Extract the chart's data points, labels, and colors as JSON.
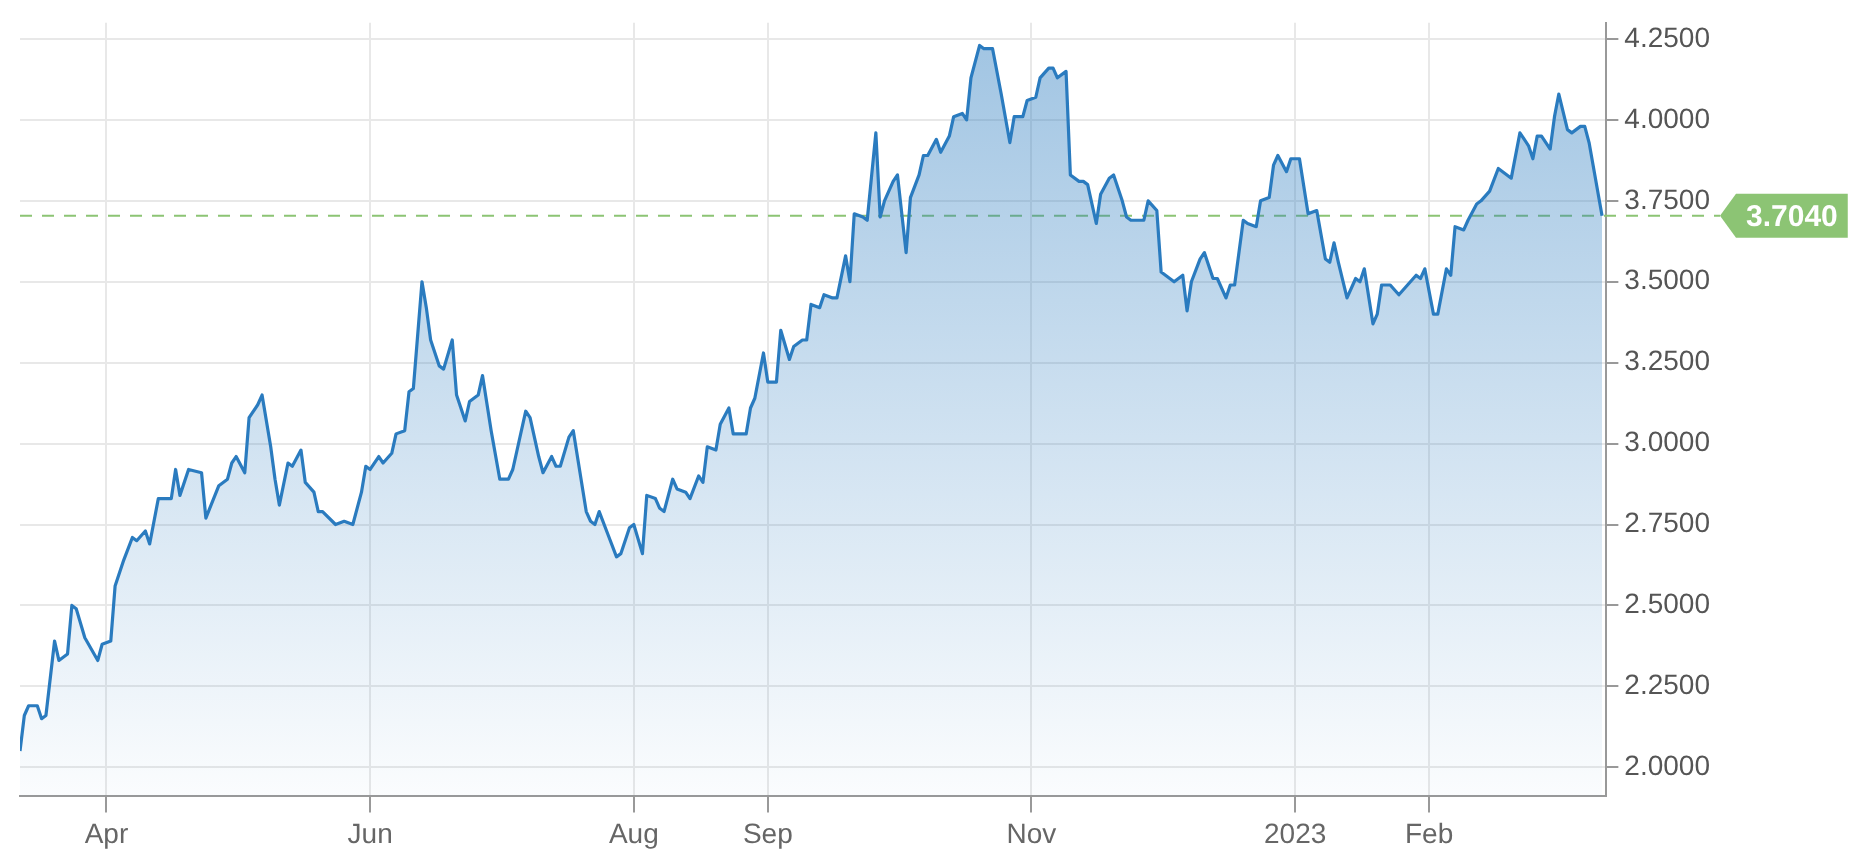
{
  "chart_data": {
    "type": "area",
    "x": [
      "2022-03-12",
      "2022-03-13",
      "2022-03-14",
      "2022-03-16",
      "2022-03-17",
      "2022-03-18",
      "2022-03-20",
      "2022-03-21",
      "2022-03-23",
      "2022-03-24",
      "2022-03-25",
      "2022-03-27",
      "2022-03-30",
      "2022-03-31",
      "2022-04-02",
      "2022-04-03",
      "2022-04-05",
      "2022-04-07",
      "2022-04-08",
      "2022-04-10",
      "2022-04-11",
      "2022-04-13",
      "2022-04-16",
      "2022-04-17",
      "2022-04-18",
      "2022-04-20",
      "2022-04-23",
      "2022-04-24",
      "2022-04-27",
      "2022-04-29",
      "2022-04-30",
      "2022-05-01",
      "2022-05-03",
      "2022-05-04",
      "2022-05-06",
      "2022-05-07",
      "2022-05-09",
      "2022-05-10",
      "2022-05-11",
      "2022-05-13",
      "2022-05-14",
      "2022-05-16",
      "2022-05-17",
      "2022-05-19",
      "2022-05-20",
      "2022-05-21",
      "2022-05-24",
      "2022-05-26",
      "2022-05-28",
      "2022-05-30",
      "2022-05-31",
      "2022-06-01",
      "2022-06-03",
      "2022-06-04",
      "2022-06-06",
      "2022-06-07",
      "2022-06-09",
      "2022-06-10",
      "2022-06-11",
      "2022-06-13",
      "2022-06-14",
      "2022-06-15",
      "2022-06-17",
      "2022-06-18",
      "2022-06-20",
      "2022-06-21",
      "2022-06-23",
      "2022-06-24",
      "2022-06-26",
      "2022-06-27",
      "2022-06-29",
      "2022-07-01",
      "2022-07-03",
      "2022-07-04",
      "2022-07-07",
      "2022-07-08",
      "2022-07-10",
      "2022-07-11",
      "2022-07-13",
      "2022-07-14",
      "2022-07-15",
      "2022-07-17",
      "2022-07-18",
      "2022-07-21",
      "2022-07-22",
      "2022-07-23",
      "2022-07-24",
      "2022-07-26",
      "2022-07-28",
      "2022-07-29",
      "2022-07-31",
      "2022-08-01",
      "2022-08-03",
      "2022-08-04",
      "2022-08-06",
      "2022-08-07",
      "2022-08-08",
      "2022-08-10",
      "2022-08-11",
      "2022-08-13",
      "2022-08-14",
      "2022-08-16",
      "2022-08-17",
      "2022-08-18",
      "2022-08-20",
      "2022-08-21",
      "2022-08-23",
      "2022-08-24",
      "2022-08-27",
      "2022-08-28",
      "2022-08-29",
      "2022-08-31",
      "2022-09-01",
      "2022-09-03",
      "2022-09-04",
      "2022-09-06",
      "2022-09-07",
      "2022-09-09",
      "2022-09-10",
      "2022-09-11",
      "2022-09-13",
      "2022-09-14",
      "2022-09-16",
      "2022-09-17",
      "2022-09-19",
      "2022-09-20",
      "2022-09-21",
      "2022-09-23",
      "2022-09-24",
      "2022-09-26",
      "2022-09-27",
      "2022-09-28",
      "2022-09-30",
      "2022-10-01",
      "2022-10-03",
      "2022-10-04",
      "2022-10-06",
      "2022-10-07",
      "2022-10-08",
      "2022-10-10",
      "2022-10-11",
      "2022-10-13",
      "2022-10-14",
      "2022-10-16",
      "2022-10-17",
      "2022-10-18",
      "2022-10-20",
      "2022-10-21",
      "2022-10-23",
      "2022-10-25",
      "2022-10-27",
      "2022-10-28",
      "2022-10-30",
      "2022-10-31",
      "2022-11-02",
      "2022-11-03",
      "2022-11-05",
      "2022-11-06",
      "2022-11-07",
      "2022-11-09",
      "2022-11-10",
      "2022-11-12",
      "2022-11-13",
      "2022-11-14",
      "2022-11-16",
      "2022-11-17",
      "2022-11-19",
      "2022-11-20",
      "2022-11-22",
      "2022-11-23",
      "2022-11-24",
      "2022-11-27",
      "2022-11-28",
      "2022-11-30",
      "2022-12-01",
      "2022-12-03",
      "2022-12-04",
      "2022-12-06",
      "2022-12-07",
      "2022-12-08",
      "2022-12-10",
      "2022-12-11",
      "2022-12-13",
      "2022-12-14",
      "2022-12-16",
      "2022-12-17",
      "2022-12-18",
      "2022-12-20",
      "2022-12-21",
      "2022-12-23",
      "2022-12-24",
      "2022-12-26",
      "2022-12-27",
      "2022-12-28",
      "2022-12-30",
      "2022-12-31",
      "2023-01-02",
      "2023-01-04",
      "2023-01-06",
      "2023-01-08",
      "2023-01-09",
      "2023-01-10",
      "2023-01-11",
      "2023-01-13",
      "2023-01-15",
      "2023-01-16",
      "2023-01-17",
      "2023-01-19",
      "2023-01-20",
      "2023-01-21",
      "2023-01-23",
      "2023-01-25",
      "2023-01-27",
      "2023-01-29",
      "2023-01-30",
      "2023-01-31",
      "2023-02-02",
      "2023-02-03",
      "2023-02-05",
      "2023-02-06",
      "2023-02-07",
      "2023-02-09",
      "2023-02-10",
      "2023-02-12",
      "2023-02-13",
      "2023-02-15",
      "2023-02-17",
      "2023-02-20",
      "2023-02-22",
      "2023-02-24",
      "2023-02-25",
      "2023-02-26",
      "2023-02-27",
      "2023-03-01",
      "2023-03-02",
      "2023-03-03",
      "2023-03-05",
      "2023-03-06",
      "2023-03-08",
      "2023-03-09",
      "2023-03-10",
      "2023-03-13"
    ],
    "series": [
      {
        "color": "#2a7bbf",
        "values": [
          2.05,
          2.16,
          2.19,
          2.19,
          2.15,
          2.16,
          2.39,
          2.33,
          2.35,
          2.5,
          2.49,
          2.4,
          2.33,
          2.38,
          2.39,
          2.56,
          2.64,
          2.71,
          2.7,
          2.73,
          2.69,
          2.83,
          2.83,
          2.92,
          2.84,
          2.92,
          2.91,
          2.77,
          2.87,
          2.89,
          2.94,
          2.96,
          2.91,
          3.08,
          3.12,
          3.15,
          2.99,
          2.89,
          2.81,
          2.94,
          2.93,
          2.98,
          2.88,
          2.85,
          2.79,
          2.79,
          2.75,
          2.76,
          2.75,
          2.85,
          2.93,
          2.92,
          2.96,
          2.94,
          2.97,
          3.03,
          3.04,
          3.16,
          3.17,
          3.5,
          3.42,
          3.32,
          3.24,
          3.23,
          3.32,
          3.15,
          3.07,
          3.13,
          3.15,
          3.21,
          3.04,
          2.89,
          2.89,
          2.92,
          3.1,
          3.08,
          2.96,
          2.91,
          2.96,
          2.93,
          2.93,
          3.02,
          3.04,
          2.79,
          2.76,
          2.75,
          2.79,
          2.72,
          2.65,
          2.66,
          2.74,
          2.75,
          2.66,
          2.84,
          2.83,
          2.8,
          2.79,
          2.89,
          2.86,
          2.85,
          2.83,
          2.9,
          2.88,
          2.99,
          2.98,
          3.06,
          3.11,
          3.03,
          3.03,
          3.11,
          3.14,
          3.28,
          3.19,
          3.19,
          3.35,
          3.26,
          3.3,
          3.32,
          3.32,
          3.43,
          3.42,
          3.46,
          3.45,
          3.45,
          3.58,
          3.5,
          3.71,
          3.7,
          3.69,
          3.96,
          3.7,
          3.75,
          3.81,
          3.83,
          3.59,
          3.76,
          3.83,
          3.89,
          3.89,
          3.94,
          3.9,
          3.95,
          4.01,
          4.02,
          4.0,
          4.13,
          4.23,
          4.22,
          4.22,
          4.08,
          3.93,
          4.01,
          4.01,
          4.06,
          4.07,
          4.13,
          4.16,
          4.16,
          4.13,
          4.15,
          3.83,
          3.81,
          3.81,
          3.8,
          3.68,
          3.77,
          3.82,
          3.83,
          3.75,
          3.7,
          3.69,
          3.69,
          3.75,
          3.72,
          3.53,
          3.51,
          3.5,
          3.52,
          3.41,
          3.5,
          3.57,
          3.59,
          3.51,
          3.51,
          3.45,
          3.49,
          3.49,
          3.69,
          3.68,
          3.67,
          3.75,
          3.76,
          3.86,
          3.89,
          3.84,
          3.88,
          3.88,
          3.71,
          3.72,
          3.57,
          3.56,
          3.62,
          3.56,
          3.45,
          3.51,
          3.5,
          3.54,
          3.37,
          3.4,
          3.49,
          3.49,
          3.46,
          3.49,
          3.52,
          3.51,
          3.54,
          3.4,
          3.4,
          3.54,
          3.52,
          3.67,
          3.66,
          3.69,
          3.74,
          3.75,
          3.78,
          3.85,
          3.82,
          3.96,
          3.92,
          3.88,
          3.95,
          3.95,
          3.91,
          4.01,
          4.08,
          3.97,
          3.96,
          3.98,
          3.98,
          3.93,
          3.704
        ]
      }
    ],
    "xlim": [
      "2022-03-12",
      "2023-03-14"
    ],
    "xticks": [
      {
        "value": "2022-04-01",
        "label": "Apr"
      },
      {
        "value": "2022-06-01",
        "label": "Jun"
      },
      {
        "value": "2022-08-01",
        "label": "Aug"
      },
      {
        "value": "2022-09-01",
        "label": "Sep"
      },
      {
        "value": "2022-11-01",
        "label": "Nov"
      },
      {
        "value": "2023-01-01",
        "label": "2023"
      },
      {
        "value": "2023-02-01",
        "label": "Feb"
      }
    ],
    "ylim": [
      1.91,
      4.3
    ],
    "yticks": [
      {
        "value": 2,
        "label": "2.0000"
      },
      {
        "value": 2.25,
        "label": "2.2500"
      },
      {
        "value": 2.5,
        "label": "2.5000"
      },
      {
        "value": 2.75,
        "label": "2.7500"
      },
      {
        "value": 3,
        "label": "3.0000"
      },
      {
        "value": 3.25,
        "label": "3.2500"
      },
      {
        "value": 3.5,
        "label": "3.5000"
      },
      {
        "value": 3.75,
        "label": "3.7500"
      },
      {
        "value": 4,
        "label": "4.0000"
      },
      {
        "value": 4.25,
        "label": "4.2500"
      }
    ],
    "ref_lines": [
      {
        "axis": "y",
        "value": 3.704,
        "label": "3.7040",
        "color": "#8cc474",
        "line_style": "dashed"
      }
    ],
    "grid": true,
    "legend": false,
    "marker": "none",
    "line_style": "solid"
  }
}
